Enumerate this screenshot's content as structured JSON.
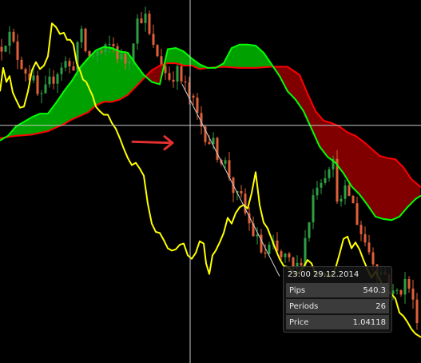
{
  "chart_data": {
    "type": "line",
    "instrument_view": "Ichimoku Kinko Hyo",
    "series_colors": {
      "tenkan": "#ffff00",
      "senkou_a": "#00ff00",
      "senkou_b": "#ff0000",
      "cloud_bullish": "#00a000",
      "cloud_bearish": "#800000",
      "candle_up": "#2ea043",
      "candle_down": "#e0603a",
      "crosshair": "#c8c8c8",
      "arrow": "#e03030"
    },
    "price_range": [
      1.0355,
      1.0665
    ],
    "tenkan": [
      [
        0,
        1.0587
      ],
      [
        4,
        1.0607
      ],
      [
        8,
        1.0595
      ],
      [
        12,
        1.06
      ],
      [
        16,
        1.0586
      ],
      [
        20,
        1.058
      ],
      [
        25,
        1.0573
      ],
      [
        30,
        1.0574
      ],
      [
        35,
        1.0587
      ],
      [
        40,
        1.0605
      ],
      [
        45,
        1.0612
      ],
      [
        50,
        1.0606
      ],
      [
        55,
        1.0609
      ],
      [
        60,
        1.0617
      ],
      [
        65,
        1.0645
      ],
      [
        70,
        1.0642
      ],
      [
        75,
        1.0636
      ],
      [
        80,
        1.0637
      ],
      [
        84,
        1.0631
      ],
      [
        88,
        1.0631
      ],
      [
        92,
        1.0627
      ],
      [
        96,
        1.0611
      ],
      [
        100,
        1.0605
      ],
      [
        104,
        1.0597
      ],
      [
        108,
        1.0595
      ],
      [
        112,
        1.0589
      ],
      [
        116,
        1.0583
      ],
      [
        120,
        1.0574
      ],
      [
        125,
        1.057
      ],
      [
        130,
        1.0567
      ],
      [
        135,
        1.0567
      ],
      [
        140,
        1.056
      ],
      [
        145,
        1.0555
      ],
      [
        150,
        1.0547
      ],
      [
        155,
        1.0538
      ],
      [
        160,
        1.053
      ],
      [
        165,
        1.0524
      ],
      [
        170,
        1.0526
      ],
      [
        175,
        1.0521
      ],
      [
        180,
        1.0515
      ],
      [
        185,
        1.0491
      ],
      [
        190,
        1.0474
      ],
      [
        195,
        1.0467
      ],
      [
        200,
        1.0466
      ],
      [
        205,
        1.046
      ],
      [
        210,
        1.0453
      ],
      [
        215,
        1.0451
      ],
      [
        220,
        1.0452
      ],
      [
        225,
        1.0456
      ],
      [
        230,
        1.0457
      ],
      [
        235,
        1.0447
      ],
      [
        240,
        1.0444
      ],
      [
        245,
        1.0449
      ],
      [
        250,
        1.0459
      ],
      [
        255,
        1.0457
      ],
      [
        258,
        1.044
      ],
      [
        262,
        1.0431
      ],
      [
        266,
        1.0447
      ],
      [
        270,
        1.0451
      ],
      [
        275,
        1.0458
      ],
      [
        280,
        1.0466
      ],
      [
        285,
        1.0479
      ],
      [
        290,
        1.0474
      ],
      [
        295,
        1.0483
      ],
      [
        300,
        1.0488
      ],
      [
        305,
        1.049
      ],
      [
        310,
        1.0487
      ],
      [
        315,
        1.05
      ],
      [
        320,
        1.0518
      ],
      [
        325,
        1.049
      ],
      [
        330,
        1.0475
      ],
      [
        335,
        1.047
      ],
      [
        340,
        1.0461
      ],
      [
        345,
        1.0452
      ],
      [
        350,
        1.0444
      ],
      [
        355,
        1.0438
      ],
      [
        360,
        1.0437
      ],
      [
        365,
        1.0434
      ],
      [
        370,
        1.043
      ],
      [
        375,
        1.0433
      ],
      [
        380,
        1.0437
      ],
      [
        385,
        1.0443
      ],
      [
        390,
        1.044
      ],
      [
        395,
        1.0431
      ],
      [
        400,
        1.043
      ],
      [
        405,
        1.0432
      ],
      [
        410,
        1.0429
      ],
      [
        415,
        1.043
      ],
      [
        420,
        1.0436
      ],
      [
        425,
        1.0448
      ],
      [
        430,
        1.0461
      ],
      [
        435,
        1.0463
      ],
      [
        440,
        1.0453
      ],
      [
        445,
        1.0458
      ],
      [
        450,
        1.0452
      ],
      [
        455,
        1.0443
      ],
      [
        460,
        1.0435
      ],
      [
        465,
        1.0428
      ],
      [
        470,
        1.0433
      ],
      [
        475,
        1.0427
      ],
      [
        480,
        1.042
      ],
      [
        485,
        1.0417
      ],
      [
        490,
        1.0414
      ],
      [
        495,
        1.041
      ],
      [
        500,
        1.0398
      ],
      [
        505,
        1.0395
      ],
      [
        510,
        1.039
      ],
      [
        515,
        1.0384
      ],
      [
        520,
        1.038
      ],
      [
        527,
        1.0377
      ]
    ],
    "senkou_a": [
      [
        0,
        1.0545
      ],
      [
        10,
        1.0549
      ],
      [
        20,
        1.0557
      ],
      [
        30,
        1.0561
      ],
      [
        40,
        1.0565
      ],
      [
        50,
        1.0568
      ],
      [
        60,
        1.0568
      ],
      [
        70,
        1.0577
      ],
      [
        80,
        1.0587
      ],
      [
        90,
        1.0596
      ],
      [
        100,
        1.0607
      ],
      [
        110,
        1.0615
      ],
      [
        120,
        1.0622
      ],
      [
        130,
        1.0625
      ],
      [
        140,
        1.0624
      ],
      [
        150,
        1.0621
      ],
      [
        160,
        1.062
      ],
      [
        170,
        1.061
      ],
      [
        180,
        1.0601
      ],
      [
        190,
        1.0595
      ],
      [
        200,
        1.0593
      ],
      [
        210,
        1.0623
      ],
      [
        220,
        1.0624
      ],
      [
        230,
        1.0621
      ],
      [
        240,
        1.0615
      ],
      [
        250,
        1.061
      ],
      [
        260,
        1.0607
      ],
      [
        270,
        1.0607
      ],
      [
        280,
        1.0611
      ],
      [
        290,
        1.0624
      ],
      [
        300,
        1.0627
      ],
      [
        310,
        1.0627
      ],
      [
        320,
        1.0626
      ],
      [
        330,
        1.062
      ],
      [
        340,
        1.061
      ],
      [
        350,
        1.06
      ],
      [
        360,
        1.0587
      ],
      [
        370,
        1.058
      ],
      [
        380,
        1.057
      ],
      [
        390,
        1.0555
      ],
      [
        400,
        1.054
      ],
      [
        410,
        1.0531
      ],
      [
        420,
        1.0526
      ],
      [
        430,
        1.0517
      ],
      [
        440,
        1.0506
      ],
      [
        450,
        1.0499
      ],
      [
        460,
        1.049
      ],
      [
        470,
        1.048
      ],
      [
        480,
        1.0478
      ],
      [
        490,
        1.0477
      ],
      [
        500,
        1.048
      ],
      [
        510,
        1.0488
      ],
      [
        520,
        1.0495
      ],
      [
        527,
        1.0498
      ]
    ],
    "senkou_b": [
      [
        0,
        1.0547
      ],
      [
        20,
        1.0549
      ],
      [
        40,
        1.055
      ],
      [
        60,
        1.0553
      ],
      [
        70,
        1.0556
      ],
      [
        80,
        1.0559
      ],
      [
        90,
        1.0563
      ],
      [
        100,
        1.0566
      ],
      [
        110,
        1.0569
      ],
      [
        120,
        1.0575
      ],
      [
        130,
        1.0578
      ],
      [
        140,
        1.0578
      ],
      [
        150,
        1.058
      ],
      [
        160,
        1.0584
      ],
      [
        170,
        1.0591
      ],
      [
        180,
        1.0598
      ],
      [
        190,
        1.0605
      ],
      [
        200,
        1.0609
      ],
      [
        210,
        1.0611
      ],
      [
        220,
        1.0611
      ],
      [
        230,
        1.0609
      ],
      [
        240,
        1.0609
      ],
      [
        250,
        1.0606
      ],
      [
        260,
        1.0607
      ],
      [
        280,
        1.0608
      ],
      [
        300,
        1.0607
      ],
      [
        320,
        1.0607
      ],
      [
        340,
        1.0608
      ],
      [
        360,
        1.0608
      ],
      [
        375,
        1.0601
      ],
      [
        385,
        1.0585
      ],
      [
        395,
        1.057
      ],
      [
        405,
        1.0562
      ],
      [
        415,
        1.056
      ],
      [
        425,
        1.0557
      ],
      [
        435,
        1.0552
      ],
      [
        445,
        1.0549
      ],
      [
        455,
        1.0544
      ],
      [
        465,
        1.0538
      ],
      [
        475,
        1.0532
      ],
      [
        485,
        1.053
      ],
      [
        495,
        1.0529
      ],
      [
        505,
        1.0522
      ],
      [
        515,
        1.0512
      ],
      [
        527,
        1.0505
      ]
    ],
    "price_path": [
      [
        0,
        1.0625
      ],
      [
        10,
        1.0637
      ],
      [
        20,
        1.062
      ],
      [
        30,
        1.0608
      ],
      [
        40,
        1.0598
      ],
      [
        50,
        1.0576
      ],
      [
        60,
        1.059
      ],
      [
        70,
        1.0604
      ],
      [
        80,
        1.0613
      ],
      [
        90,
        1.0604
      ],
      [
        100,
        1.0638
      ],
      [
        110,
        1.0615
      ],
      [
        120,
        1.062
      ],
      [
        130,
        1.0619
      ],
      [
        140,
        1.0628
      ],
      [
        150,
        1.0615
      ],
      [
        160,
        1.0612
      ],
      [
        170,
        1.0645
      ],
      [
        180,
        1.0655
      ],
      [
        190,
        1.0624
      ],
      [
        200,
        1.0616
      ],
      [
        210,
        1.0598
      ],
      [
        220,
        1.0605
      ],
      [
        230,
        1.0592
      ],
      [
        240,
        1.0579
      ],
      [
        250,
        1.056
      ],
      [
        260,
        1.0548
      ],
      [
        270,
        1.0537
      ],
      [
        280,
        1.0528
      ],
      [
        290,
        1.0511
      ],
      [
        295,
        1.0493
      ],
      [
        300,
        1.0498
      ],
      [
        310,
        1.0476
      ],
      [
        320,
        1.0462
      ],
      [
        330,
        1.0446
      ],
      [
        340,
        1.0455
      ],
      [
        350,
        1.0444
      ],
      [
        360,
        1.0445
      ],
      [
        365,
        1.043
      ],
      [
        375,
        1.044
      ],
      [
        385,
        1.0471
      ],
      [
        395,
        1.0509
      ],
      [
        400,
        1.0512
      ],
      [
        405,
        1.0517
      ],
      [
        410,
        1.0523
      ],
      [
        415,
        1.0533
      ],
      [
        420,
        1.051
      ],
      [
        425,
        1.0486
      ],
      [
        430,
        1.0497
      ],
      [
        435,
        1.0503
      ],
      [
        440,
        1.0494
      ],
      [
        445,
        1.0482
      ],
      [
        450,
        1.047
      ],
      [
        455,
        1.0461
      ],
      [
        460,
        1.0455
      ],
      [
        465,
        1.0445
      ],
      [
        470,
        1.0442
      ],
      [
        475,
        1.043
      ],
      [
        480,
        1.0436
      ],
      [
        490,
        1.0411
      ],
      [
        500,
        1.0418
      ],
      [
        510,
        1.0426
      ],
      [
        520,
        1.0396
      ],
      [
        527,
        1.0398
      ]
    ],
    "trend_line": [
      [
        228,
        1.0593
      ],
      [
        350,
        1.0429
      ]
    ],
    "arrow": {
      "from": [
        166,
        1.0544
      ],
      "to": [
        216,
        1.0543
      ],
      "direction": "right"
    },
    "crosshair": {
      "x": 238,
      "price": 1.0558
    },
    "grid": false,
    "legend": "none"
  },
  "tooltip": {
    "datetime": "23:00 29.12.2014",
    "rows": [
      {
        "label": "Pips",
        "value": "540.3"
      },
      {
        "label": "Periods",
        "value": "26"
      },
      {
        "label": "Price",
        "value": "1.04118"
      }
    ]
  }
}
